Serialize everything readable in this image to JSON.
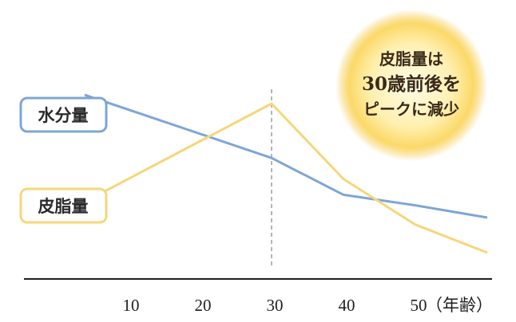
{
  "chart_data": {
    "type": "line",
    "x": [
      30,
      40,
      50,
      60
    ],
    "xlabel": "",
    "ylabel": "",
    "title": "",
    "x_tick_labels": [
      "10",
      "20",
      "30",
      "40",
      "50"
    ],
    "x_unit_label": "（年齢）",
    "xlim": [
      0,
      60
    ],
    "grid": false,
    "reference_line_x": 30,
    "series": [
      {
        "name": "水分量",
        "color": "#7ea6d6",
        "x": [
          4,
          30,
          40,
          50,
          60
        ],
        "values": [
          5.25,
          3.45,
          2.4,
          2.1,
          1.75
        ]
      },
      {
        "name": "皮脂量",
        "color": "#f5d77a",
        "x": [
          4,
          30,
          40,
          50,
          60
        ],
        "values": [
          2.2,
          5.0,
          2.85,
          1.55,
          0.75
        ]
      }
    ],
    "ylim": [
      0,
      7.5
    ],
    "annotation": {
      "lines": [
        "皮脂量は",
        "30歳前後を",
        "ピークに減少"
      ]
    }
  },
  "colors": {
    "axis": "#1e1e1e",
    "reference_line": "#b5b5b5",
    "water": "#7ea6d6",
    "sebum": "#f5d77a",
    "callout_inner": "#fff7d0",
    "callout_outer": "#f8cf55"
  }
}
